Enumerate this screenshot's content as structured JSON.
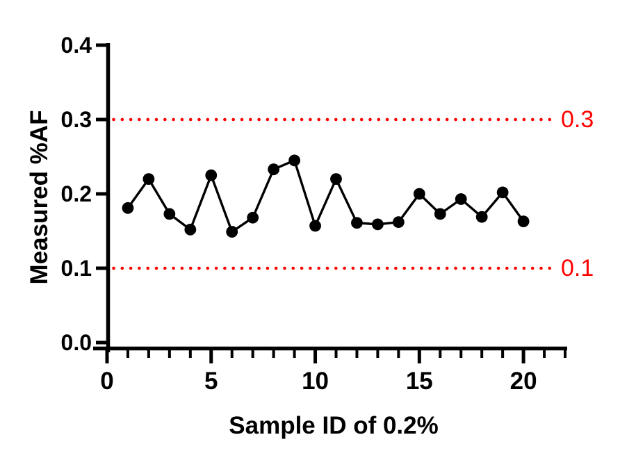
{
  "figure": {
    "background": "#FFFFFF",
    "axis_color": "#000000"
  },
  "chart_data": {
    "type": "line",
    "title": "",
    "xlabel": "Sample ID of 0.2%",
    "ylabel": "Measured %AF",
    "x": [
      1,
      2,
      3,
      4,
      5,
      6,
      7,
      8,
      9,
      10,
      11,
      12,
      13,
      14,
      15,
      16,
      17,
      18,
      19,
      20
    ],
    "y": [
      0.181,
      0.22,
      0.173,
      0.152,
      0.225,
      0.149,
      0.168,
      0.233,
      0.245,
      0.157,
      0.22,
      0.161,
      0.159,
      0.162,
      0.2,
      0.173,
      0.193,
      0.169,
      0.202,
      0.163
    ],
    "xlim": [
      0,
      22
    ],
    "ylim": [
      0.0,
      0.4
    ],
    "grid": false,
    "legend": null,
    "line_color": "#000000",
    "marker": {
      "shape": "circle",
      "color": "#000000"
    },
    "xticks": {
      "major": [
        0,
        5,
        10,
        15,
        20
      ],
      "major_labels": [
        "0",
        "5",
        "10",
        "15",
        "20"
      ],
      "minor": [
        1,
        2,
        3,
        4,
        6,
        7,
        8,
        9,
        11,
        12,
        13,
        14,
        16,
        17,
        18,
        19,
        21,
        22
      ]
    },
    "yticks": {
      "values": [
        0.0,
        0.1,
        0.2,
        0.3,
        0.4
      ],
      "labels": [
        "0.0",
        "0.1",
        "0.2",
        "0.3",
        "0.4"
      ]
    },
    "thresholds": [
      {
        "value": 0.3,
        "label": "0.3",
        "color": "#FF0000",
        "style": "dotted"
      },
      {
        "value": 0.1,
        "label": "0.1",
        "color": "#FF0000",
        "style": "dotted"
      }
    ]
  }
}
